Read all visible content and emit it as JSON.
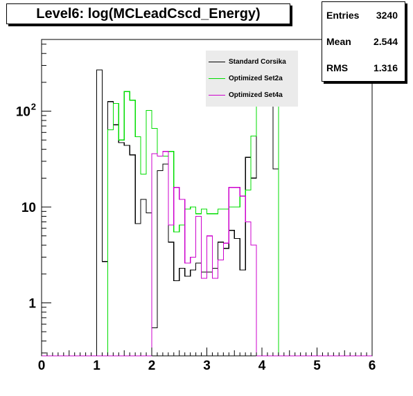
{
  "chart_data": {
    "type": "histogram",
    "title": "Level6:  log(MCLeadCscd_Energy)",
    "xlim": [
      0,
      6
    ],
    "ylim": [
      0.28,
      560
    ],
    "y_scale": "log",
    "x_ticks": [
      "0",
      "1",
      "2",
      "3",
      "4",
      "5",
      "6"
    ],
    "y_ticks": [
      {
        "value": 1,
        "label": "1"
      },
      {
        "value": 10,
        "label": "10"
      },
      {
        "value": 100,
        "label": "10",
        "sup": "2"
      }
    ],
    "bin_width": 0.1,
    "legend_position": "top-right",
    "stats": [
      {
        "label": "Entries",
        "value": "3240"
      },
      {
        "label": "Mean",
        "value": "2.544"
      },
      {
        "label": "RMS",
        "value": "1.316"
      }
    ],
    "series": [
      {
        "name": "Standard Corsika",
        "color": "#000000",
        "x": [
          1.0,
          1.1,
          1.2,
          1.3,
          1.4,
          1.5,
          1.6,
          1.7,
          1.8,
          1.9,
          2.0,
          2.1,
          2.2,
          2.3,
          2.4,
          2.5,
          2.6,
          2.7,
          2.8,
          2.9,
          3.0,
          3.1,
          3.2,
          3.3,
          3.4,
          3.5,
          3.6,
          3.7,
          3.8,
          3.9,
          4.0,
          4.1,
          4.2
        ],
        "values": [
          270,
          2.7,
          126,
          72,
          47,
          44,
          35,
          6.7,
          12,
          8.7,
          0.55,
          24,
          28,
          4.3,
          1.7,
          2.3,
          1.9,
          2.2,
          2.6,
          2.1,
          2.1,
          2.3,
          4.3,
          3.7,
          5.7,
          4.7,
          2.2,
          33,
          20,
          170,
          170,
          170,
          25
        ]
      },
      {
        "name": "Optimized Set2a",
        "color": "#00dd00",
        "x": [
          1.2,
          1.3,
          1.4,
          1.5,
          1.6,
          1.7,
          1.8,
          1.9,
          2.0,
          2.1,
          2.2,
          2.3,
          2.4,
          2.5,
          2.6,
          2.7,
          2.8,
          2.9,
          3.0,
          3.1,
          3.2,
          3.3,
          3.4,
          3.5,
          3.6,
          3.7,
          3.8,
          3.9,
          4.0,
          4.1,
          4.2
        ],
        "values": [
          64,
          120,
          50,
          160,
          130,
          54,
          22,
          102,
          66,
          34,
          34,
          38,
          5.5,
          6.5,
          9.5,
          10,
          8.5,
          9.5,
          8.5,
          8.5,
          9.5,
          9.5,
          10,
          10,
          13,
          15,
          55,
          170,
          170,
          170,
          170
        ]
      },
      {
        "name": "Optimized Set4a",
        "color": "#cc00cc",
        "x": [
          1.9,
          2.0,
          2.1,
          2.2,
          2.3,
          2.4,
          2.5,
          2.6,
          2.7,
          2.8,
          2.9,
          3.0,
          3.1,
          3.2,
          3.3,
          3.4,
          3.5,
          3.6,
          3.7,
          3.8,
          3.9,
          4.0,
          4.1
        ],
        "values": [
          0,
          36,
          34,
          38,
          6.5,
          16,
          12,
          2.6,
          3.0,
          8.0,
          1.8,
          5.0,
          1.8,
          2.8,
          4.2,
          16,
          16,
          13,
          7.0,
          4.0,
          0,
          0,
          0
        ]
      }
    ]
  }
}
